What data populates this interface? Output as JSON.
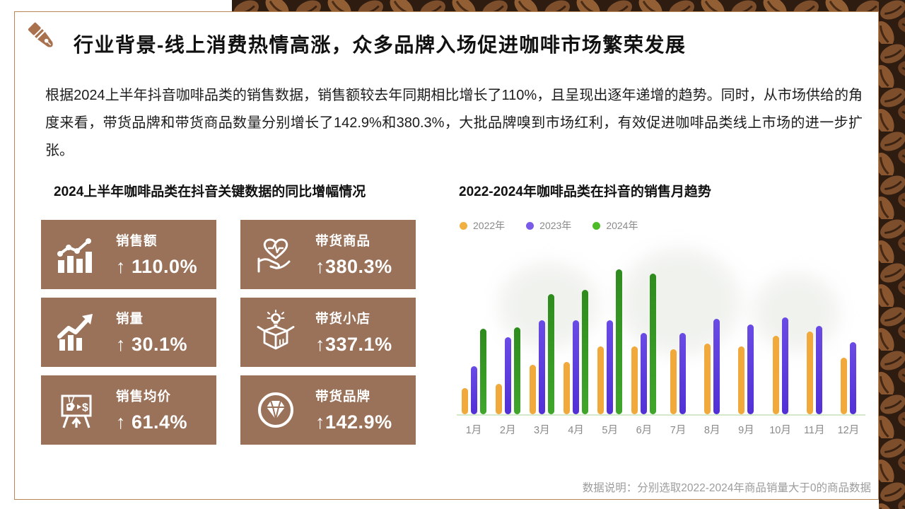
{
  "slide": {
    "title": "行业背景-线上消费热情高涨，众多品牌入场促进咖啡市场繁荣发展",
    "body": "根据2024上半年抖音咖啡品类的销售数据，销售额较去年同期相比增长了110%，且呈现出逐年递增的趋势。同时，从市场供给的角度来看，带货品牌和带货商品数量分别增长了142.9%和380.3%，大批品牌嗅到市场红利，有效促进咖啡品类线上市场的进一步扩张。",
    "footnote": "数据说明：分别选取2022-2024年商品销量大于0的商品数据",
    "accent_color": "#9A7159",
    "card_border_color": "#B98756"
  },
  "stats_section": {
    "heading": "2024上半年咖啡品类在抖音关键数据的同比增幅情况",
    "cards": [
      {
        "label": "销售额",
        "value": "↑ 110.0%",
        "icon": "bar-chart-trend-icon"
      },
      {
        "label": "带货商品",
        "value": "↑380.3%",
        "icon": "hand-heart-pulse-icon"
      },
      {
        "label": "销量",
        "value": "↑ 30.1%",
        "icon": "growth-bars-arrow-icon"
      },
      {
        "label": "带货小店",
        "value": "↑337.1%",
        "icon": "open-box-bulb-icon"
      },
      {
        "label": "销售均价",
        "value": "↑ 61.4%",
        "icon": "price-board-easel-icon"
      },
      {
        "label": "带货品牌",
        "value": "↑142.9%",
        "icon": "diamond-circle-icon"
      }
    ]
  },
  "chart_section": {
    "heading": "2022-2024年咖啡品类在抖音的销售月趋势"
  },
  "chart_data": {
    "type": "bar",
    "title": "2022-2024年咖啡品类在抖音的销售月趋势",
    "categories": [
      "1月",
      "2月",
      "3月",
      "4月",
      "5月",
      "6月",
      "7月",
      "8月",
      "9月",
      "10月",
      "11月",
      "12月"
    ],
    "series": [
      {
        "name": "2022年",
        "color": "#F1A93C",
        "legend_dot_color": "#F0B042",
        "values": [
          18,
          21,
          34,
          36,
          47,
          47,
          45,
          49,
          47,
          54,
          57,
          39
        ]
      },
      {
        "name": "2023年",
        "color": "#5230D6",
        "color_top": "#6A4BE4",
        "legend_dot_color": "#7A5BE8",
        "values": [
          33,
          53,
          65,
          65,
          65,
          56,
          56,
          66,
          62,
          67,
          61,
          50
        ]
      },
      {
        "name": "2024年",
        "color": "#3FA62B",
        "color_top": "#2E8C1D",
        "legend_dot_color": "#4CBB27",
        "values": [
          59,
          60,
          83,
          86,
          100,
          97,
          null,
          null,
          null,
          null,
          null,
          null
        ]
      }
    ],
    "xlabel": "",
    "ylabel": "",
    "ylim": [
      0,
      100
    ],
    "value_axis_visible": false,
    "grid": false,
    "legend_position": "top"
  }
}
